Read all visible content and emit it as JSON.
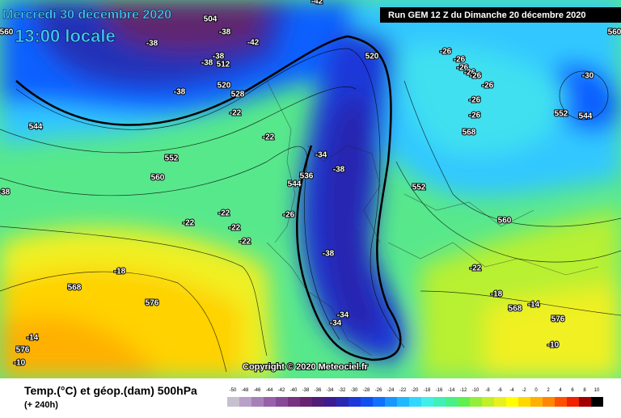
{
  "header": {
    "date": "Mercredi 30 décembre 2020",
    "time": "13:00 locale",
    "run": "Run GEM 12 Z du Dimanche 20 décembre 2020"
  },
  "copyright": "Copyright © 2020 Meteociel.fr",
  "footer": {
    "title": "Temp.(°C) et géop.(dam) 500hPa",
    "lead": "(+ 240h)"
  },
  "scale": {
    "labels": [
      -50,
      -48,
      -46,
      -44,
      -42,
      -40,
      -38,
      -36,
      -34,
      -32,
      -30,
      -28,
      -26,
      -24,
      -22,
      -20,
      -18,
      -16,
      -14,
      -12,
      -10,
      -8,
      -6,
      -4,
      -2,
      0,
      2,
      4,
      6,
      8,
      10
    ],
    "colors": [
      "#c8c0d0",
      "#b8a0c8",
      "#a880b8",
      "#9860a8",
      "#884898",
      "#783080",
      "#682070",
      "#501c78",
      "#3c1c90",
      "#2828b0",
      "#1c38d8",
      "#1050f0",
      "#1070ff",
      "#1898ff",
      "#20b8ff",
      "#30d8ff",
      "#40f0e8",
      "#40f0b8",
      "#48f088",
      "#60f050",
      "#90f038",
      "#c0f028",
      "#e8f020",
      "#ffff00",
      "#ffd800",
      "#ffb000",
      "#ff8800",
      "#ff5000",
      "#f02000",
      "#a00000",
      "#000000"
    ]
  },
  "map_labels": [
    "504",
    "-38",
    "-38",
    "-42",
    "-38",
    "-38",
    "512",
    "520",
    "528",
    "-38",
    "-22",
    "544",
    "-22",
    "552",
    "560",
    "-34",
    "-38",
    "536",
    "544",
    "-26",
    "-22",
    "-22",
    "-22",
    "-22",
    "-18",
    "568",
    "576",
    "-38",
    "-34",
    "-34",
    "520",
    "-26",
    "-26",
    "-26",
    "-26",
    "-26",
    "-26",
    "-26",
    "-26",
    "568",
    "552",
    "560",
    "-22",
    "-18",
    "568",
    "-14",
    "576",
    "-10",
    "-14",
    "576",
    "-10",
    "-30",
    "552",
    "544",
    "560",
    "560",
    "-38",
    "-42"
  ]
}
